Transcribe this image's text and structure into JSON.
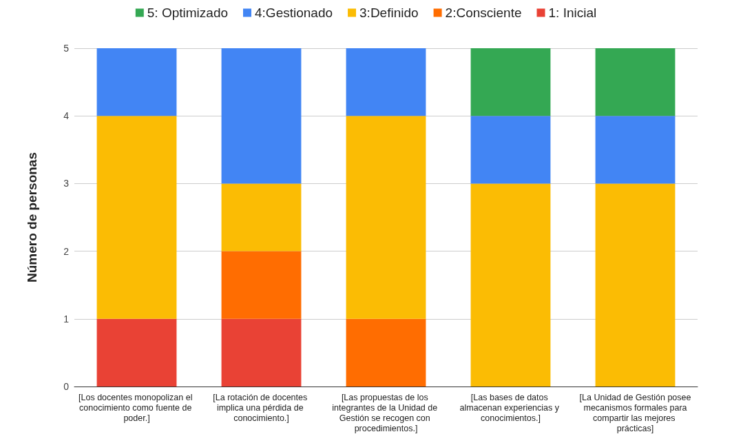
{
  "chart_data": {
    "type": "bar",
    "stacked": true,
    "ylabel": "Número de personas",
    "categories": [
      "[Los docentes monopolizan el conocimiento como fuente de poder.]",
      "[La rotación de docentes implica una pérdida de conocimiento.]",
      "[Las propuestas de los integrantes de la Unidad de Gestión se recogen con procedimientos.]",
      "[Las bases de datos almacenan experiencias y conocimientos.]",
      "[La Unidad de Gestión posee mecanismos formales para compartir las mejores prácticas]"
    ],
    "series": [
      {
        "name": "1: Inicial",
        "color": "#e94235",
        "values": [
          1,
          1,
          0,
          0,
          0
        ]
      },
      {
        "name": "2:Consciente",
        "color": "#ff6d01",
        "values": [
          0,
          1,
          1,
          0,
          0
        ]
      },
      {
        "name": "3:Definido",
        "color": "#fbbc04",
        "values": [
          3,
          1,
          3,
          3,
          3
        ]
      },
      {
        "name": "4:Gestionado",
        "color": "#4285f4",
        "values": [
          1,
          2,
          1,
          1,
          1
        ]
      },
      {
        "name": "5: Optimizado",
        "color": "#34a853",
        "values": [
          0,
          0,
          0,
          1,
          1
        ]
      }
    ],
    "ylim": [
      0,
      5
    ],
    "yticks": [
      0,
      1,
      2,
      3,
      4,
      5
    ],
    "grid": "y",
    "legend": "top"
  }
}
